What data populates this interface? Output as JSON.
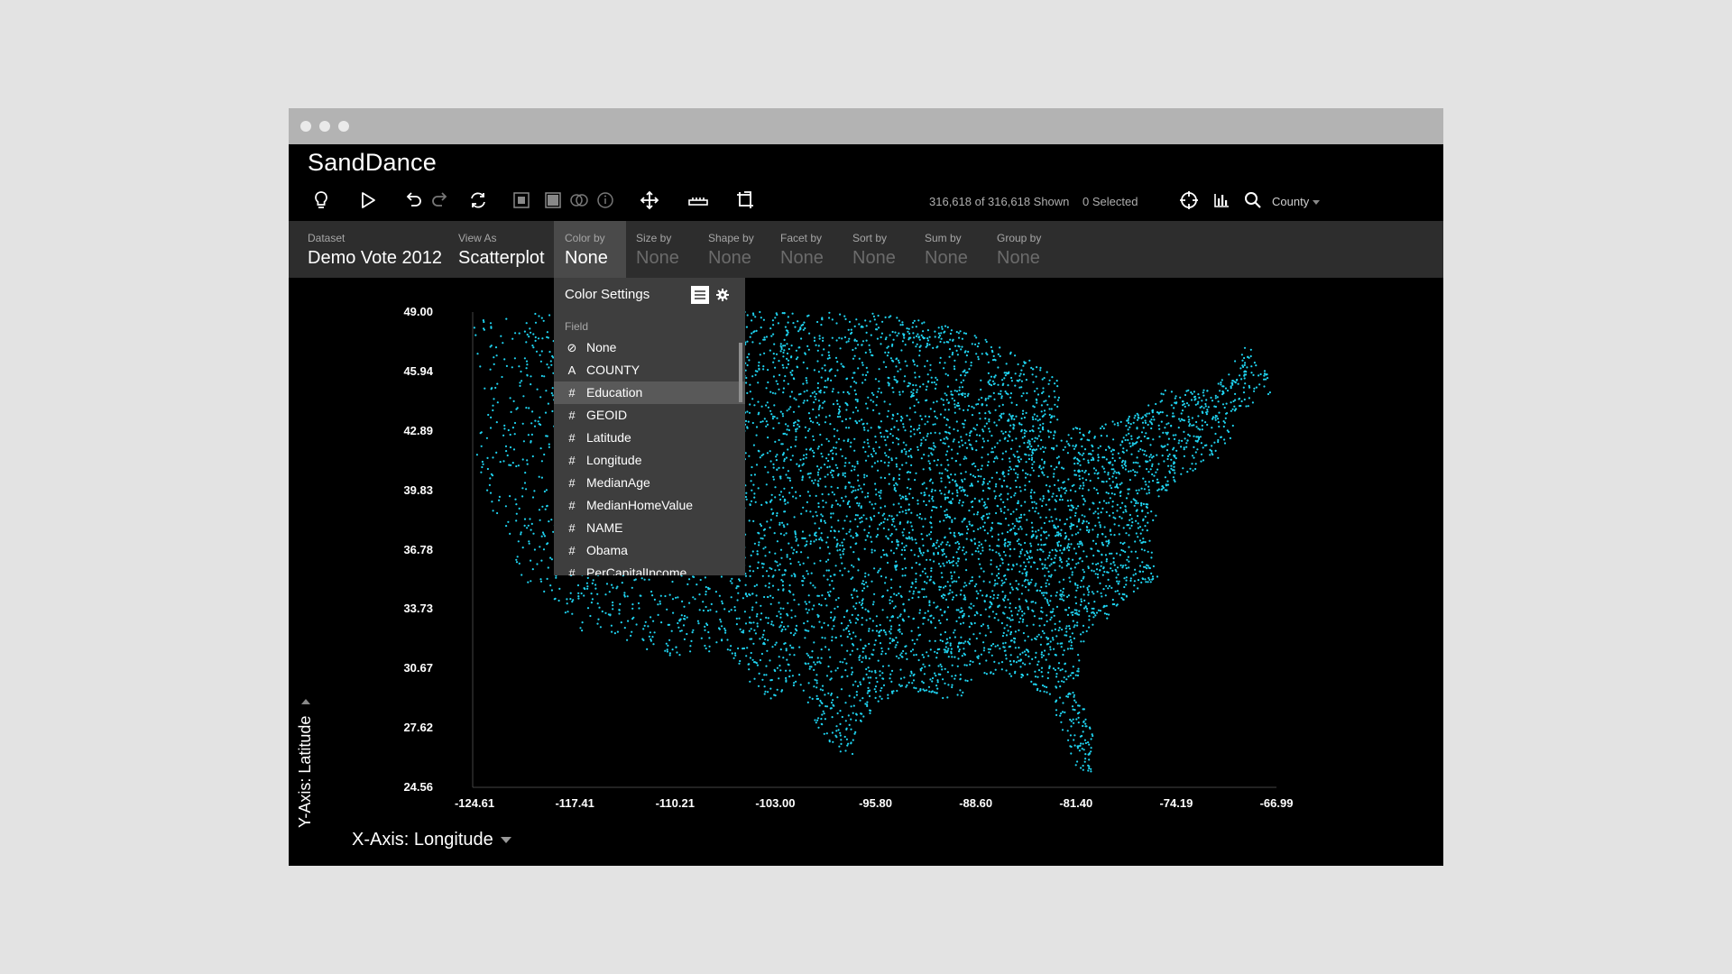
{
  "app": {
    "title": "SandDance"
  },
  "status": {
    "shown": "316,618 of 316,618 Shown",
    "selected": "0 Selected"
  },
  "search_target": {
    "value": "County"
  },
  "mapbar": [
    {
      "label": "Dataset",
      "value": "Demo Vote 2012"
    },
    {
      "label": "View As",
      "value": "Scatterplot"
    },
    {
      "label": "Color by",
      "value": "None"
    },
    {
      "label": "Size by",
      "value": "None"
    },
    {
      "label": "Shape by",
      "value": "None"
    },
    {
      "label": "Facet by",
      "value": "None"
    },
    {
      "label": "Sort by",
      "value": "None"
    },
    {
      "label": "Sum by",
      "value": "None"
    },
    {
      "label": "Group by",
      "value": "None"
    }
  ],
  "color_settings": {
    "title": "Color Settings",
    "field_label": "Field",
    "items": [
      {
        "icon": "none-icon",
        "label": "None"
      },
      {
        "icon": "text-icon",
        "label": "COUNTY"
      },
      {
        "icon": "number-icon",
        "label": "Education"
      },
      {
        "icon": "number-icon",
        "label": "GEOID"
      },
      {
        "icon": "number-icon",
        "label": "Latitude"
      },
      {
        "icon": "number-icon",
        "label": "Longitude"
      },
      {
        "icon": "number-icon",
        "label": "MedianAge"
      },
      {
        "icon": "number-icon",
        "label": "MedianHomeValue"
      },
      {
        "icon": "number-icon",
        "label": "NAME"
      },
      {
        "icon": "number-icon",
        "label": "Obama"
      },
      {
        "icon": "number-icon",
        "label": "PerCapitalIncome"
      }
    ],
    "highlighted": "Education"
  },
  "axes": {
    "y_title": "Y-Axis: Latitude",
    "x_title": "X-Axis: Longitude",
    "y_ticks": [
      "49.00",
      "45.94",
      "42.89",
      "39.83",
      "36.78",
      "33.73",
      "30.67",
      "27.62",
      "24.56"
    ],
    "x_ticks": [
      "-124.61",
      "-117.41",
      "-110.21",
      "-103.00",
      "-95.80",
      "-88.60",
      "-81.40",
      "-74.19",
      "-66.99"
    ]
  },
  "colors": {
    "point": "#1fd3f0",
    "background": "#000000",
    "panel": "#2d2d2d"
  },
  "chart_data": {
    "type": "scatter",
    "xlabel": "X-Axis: Longitude",
    "ylabel": "Y-Axis: Latitude",
    "xlim": [
      -124.61,
      -66.99
    ],
    "ylim": [
      24.56,
      49.0
    ],
    "grid": false
  }
}
